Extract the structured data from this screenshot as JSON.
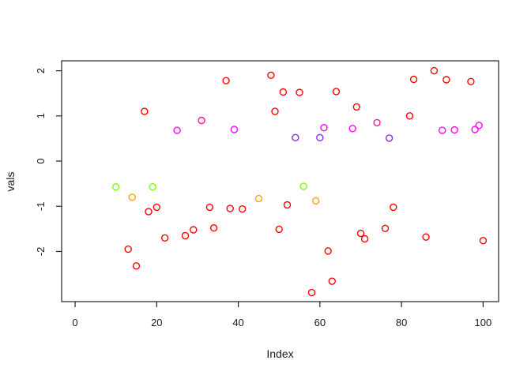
{
  "figure": {
    "background": "#ffffff",
    "frame_color": "#222222",
    "text_color": "#1a1a1a"
  },
  "chart_data": {
    "type": "scatter",
    "title": "",
    "xlabel": "Index",
    "ylabel": "vals",
    "x_ticks": [
      0,
      20,
      40,
      60,
      80,
      100
    ],
    "y_ticks": [
      -2,
      -1,
      0,
      1,
      2
    ],
    "xlim": [
      -3.3,
      103.8
    ],
    "ylim": [
      -3.11,
      2.22
    ],
    "grid": false,
    "legend": false,
    "marker": "open-circle",
    "palette": {
      "red": "#FF0000",
      "magenta": "#FF00FF",
      "blueviolet": "#8A2BE2",
      "green": "#7CFC00",
      "orange": "#FFA500",
      "deeppink": "#FF1493"
    },
    "points": [
      {
        "x": 17,
        "y": 1.1,
        "c": "red"
      },
      {
        "x": 37,
        "y": 1.78,
        "c": "red"
      },
      {
        "x": 48,
        "y": 1.9,
        "c": "red"
      },
      {
        "x": 49,
        "y": 1.1,
        "c": "red"
      },
      {
        "x": 51,
        "y": 1.53,
        "c": "red"
      },
      {
        "x": 55,
        "y": 1.52,
        "c": "red"
      },
      {
        "x": 64,
        "y": 1.54,
        "c": "red"
      },
      {
        "x": 69,
        "y": 1.2,
        "c": "red"
      },
      {
        "x": 82,
        "y": 1.0,
        "c": "red"
      },
      {
        "x": 83,
        "y": 1.81,
        "c": "red"
      },
      {
        "x": 88,
        "y": 2.0,
        "c": "red"
      },
      {
        "x": 91,
        "y": 1.8,
        "c": "red"
      },
      {
        "x": 97,
        "y": 1.76,
        "c": "red"
      },
      {
        "x": 13,
        "y": -1.95,
        "c": "red"
      },
      {
        "x": 15,
        "y": -2.32,
        "c": "red"
      },
      {
        "x": 18,
        "y": -1.12,
        "c": "red"
      },
      {
        "x": 20,
        "y": -1.02,
        "c": "red"
      },
      {
        "x": 22,
        "y": -1.7,
        "c": "red"
      },
      {
        "x": 27,
        "y": -1.65,
        "c": "red"
      },
      {
        "x": 29,
        "y": -1.52,
        "c": "red"
      },
      {
        "x": 33,
        "y": -1.02,
        "c": "red"
      },
      {
        "x": 34,
        "y": -1.48,
        "c": "red"
      },
      {
        "x": 38,
        "y": -1.05,
        "c": "red"
      },
      {
        "x": 41,
        "y": -1.06,
        "c": "red"
      },
      {
        "x": 50,
        "y": -1.51,
        "c": "red"
      },
      {
        "x": 52,
        "y": -0.97,
        "c": "red"
      },
      {
        "x": 58,
        "y": -2.91,
        "c": "red"
      },
      {
        "x": 62,
        "y": -1.99,
        "c": "red"
      },
      {
        "x": 63,
        "y": -2.66,
        "c": "red"
      },
      {
        "x": 70,
        "y": -1.6,
        "c": "red"
      },
      {
        "x": 71,
        "y": -1.72,
        "c": "red"
      },
      {
        "x": 76,
        "y": -1.49,
        "c": "red"
      },
      {
        "x": 78,
        "y": -1.02,
        "c": "red"
      },
      {
        "x": 86,
        "y": -1.68,
        "c": "red"
      },
      {
        "x": 100,
        "y": -1.76,
        "c": "red"
      },
      {
        "x": 31,
        "y": 0.9,
        "c": "deeppink"
      },
      {
        "x": 74,
        "y": 0.85,
        "c": "deeppink"
      },
      {
        "x": 25,
        "y": 0.68,
        "c": "magenta"
      },
      {
        "x": 39,
        "y": 0.7,
        "c": "magenta"
      },
      {
        "x": 61,
        "y": 0.74,
        "c": "magenta"
      },
      {
        "x": 68,
        "y": 0.72,
        "c": "magenta"
      },
      {
        "x": 90,
        "y": 0.68,
        "c": "magenta"
      },
      {
        "x": 93,
        "y": 0.69,
        "c": "magenta"
      },
      {
        "x": 98,
        "y": 0.7,
        "c": "magenta"
      },
      {
        "x": 99,
        "y": 0.79,
        "c": "magenta"
      },
      {
        "x": 54,
        "y": 0.52,
        "c": "blueviolet"
      },
      {
        "x": 60,
        "y": 0.52,
        "c": "blueviolet"
      },
      {
        "x": 77,
        "y": 0.51,
        "c": "blueviolet"
      },
      {
        "x": 10,
        "y": -0.57,
        "c": "green"
      },
      {
        "x": 19,
        "y": -0.57,
        "c": "green"
      },
      {
        "x": 56,
        "y": -0.56,
        "c": "green"
      },
      {
        "x": 14,
        "y": -0.8,
        "c": "orange"
      },
      {
        "x": 45,
        "y": -0.83,
        "c": "orange"
      },
      {
        "x": 59,
        "y": -0.88,
        "c": "orange"
      }
    ]
  }
}
